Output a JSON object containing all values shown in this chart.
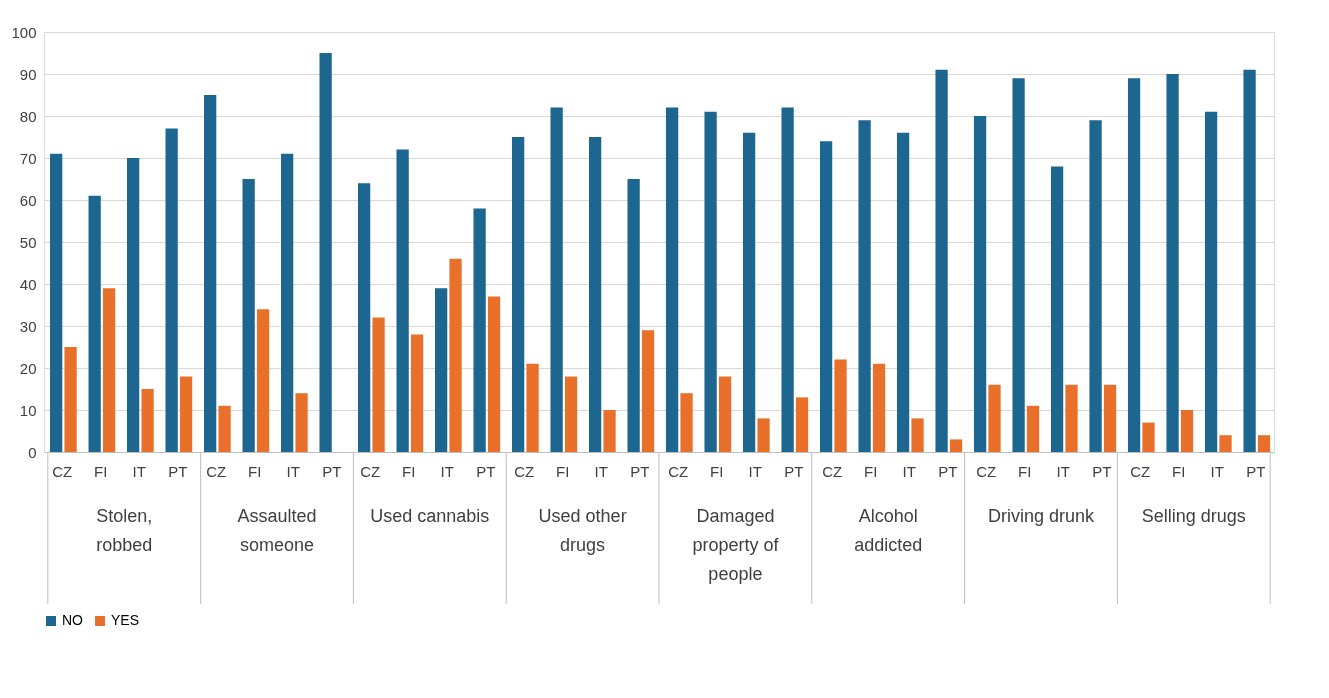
{
  "chart_data": {
    "type": "bar",
    "categories": [
      "CZ",
      "FI",
      "IT",
      "PT",
      "CZ",
      "FI",
      "IT",
      "PT",
      "CZ",
      "FI",
      "IT",
      "PT",
      "CZ",
      "FI",
      "IT",
      "PT",
      "CZ",
      "FI",
      "IT",
      "PT",
      "CZ",
      "FI",
      "IT",
      "PT",
      "CZ",
      "FI",
      "IT",
      "PT",
      "CZ",
      "FI",
      "IT",
      "PT"
    ],
    "annotations": [
      "Stolen, robbed",
      "Assaulted someone",
      "Used cannabis",
      "Used other drugs",
      "Damaged property of people",
      "Alcohol addicted",
      "Driving drunk",
      "Selling drugs"
    ],
    "series": [
      {
        "name": "NO",
        "color": "#1d6690",
        "values": [
          71,
          61,
          70,
          77,
          85,
          65,
          71,
          95,
          64,
          72,
          39,
          58,
          75,
          82,
          75,
          65,
          82,
          81,
          76,
          82,
          74,
          79,
          76,
          91,
          80,
          89,
          68,
          79,
          89,
          90,
          81,
          91
        ]
      },
      {
        "name": "YES",
        "color": "#e8702a",
        "values": [
          25,
          39,
          15,
          18,
          11,
          34,
          14,
          0,
          32,
          28,
          46,
          37,
          21,
          18,
          10,
          29,
          14,
          18,
          8,
          13,
          22,
          21,
          8,
          3,
          16,
          11,
          16,
          16,
          7,
          10,
          4,
          4
        ]
      }
    ],
    "ylim": [
      0,
      100
    ],
    "yticks": [
      0,
      10,
      20,
      30,
      40,
      50,
      60,
      70,
      80,
      90,
      100
    ],
    "grid": "y",
    "legend": "bottom"
  }
}
